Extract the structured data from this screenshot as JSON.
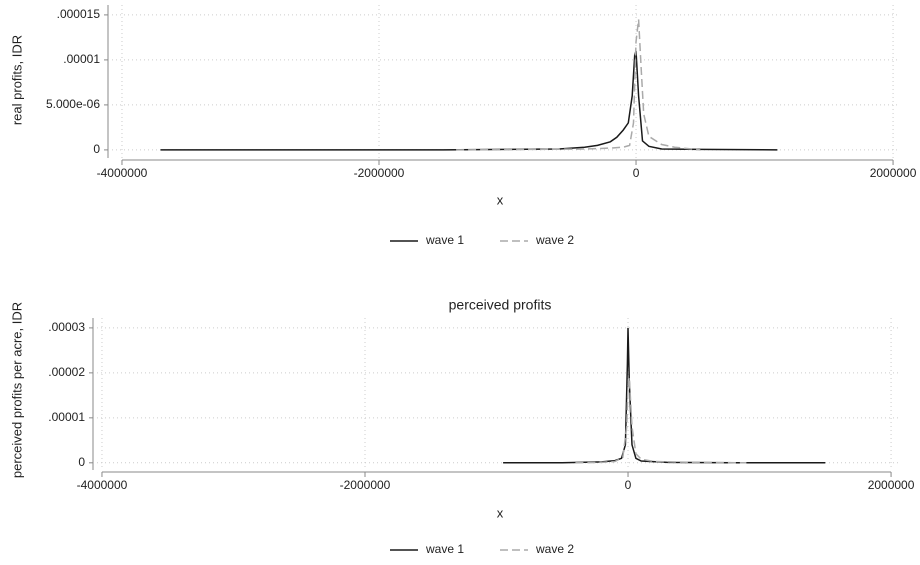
{
  "chart_data": [
    {
      "type": "line",
      "ylabel": "real profits, IDR",
      "xlabel": "x",
      "xlim": [
        -4171000,
        2054000
      ],
      "ylim": [
        -9e-07,
        1.61e-05
      ],
      "xticks": [
        -4000000,
        -2000000,
        0,
        2000000
      ],
      "yticks": [
        0,
        {
          "value": 5e-06,
          "label": "5.000e-06"
        },
        {
          "value": 1e-05,
          "label": ".00001"
        },
        {
          "value": 1.5e-05,
          "label": ".000015"
        }
      ],
      "grid": true,
      "legend": "bottom",
      "series": [
        {
          "name": "wave 1",
          "color": "#1a1a1a",
          "dash": false,
          "x": [
            -3700000,
            -3000000,
            -2000000,
            -1500000,
            -1000000,
            -600000,
            -400000,
            -300000,
            -200000,
            -150000,
            -100000,
            -60000,
            -30000,
            -10000,
            0,
            20000,
            50000,
            100000,
            200000,
            500000,
            1100000
          ],
          "values": [
            0,
            0,
            0,
            0,
            5e-08,
            1e-07,
            3e-07,
            5e-07,
            9e-07,
            1.4e-06,
            2.2e-06,
            3e-06,
            6e-06,
            1.05e-05,
            1.1e-05,
            6e-06,
            1e-06,
            4e-07,
            1e-07,
            5e-08,
            0
          ]
        },
        {
          "name": "wave 2",
          "color": "#aaaaaa",
          "dash": true,
          "x": [
            -1400000,
            -800000,
            -400000,
            -200000,
            -100000,
            -50000,
            -20000,
            0,
            20000,
            40000,
            60000,
            100000,
            200000,
            300000,
            500000
          ],
          "values": [
            0,
            5e-08,
            1e-07,
            2e-07,
            3e-07,
            5e-07,
            3e-06,
            1.2e-05,
            1.45e-05,
            9e-06,
            4e-06,
            1.5e-06,
            6e-07,
            3e-07,
            0
          ]
        }
      ]
    },
    {
      "type": "line",
      "title": "perceived profits",
      "ylabel": "perceived profits per acre, IDR",
      "xlabel": "x",
      "xlim": [
        -4129000,
        2068000
      ],
      "ylim": [
        -1.6e-06,
        3.22e-05
      ],
      "xticks": [
        -4000000,
        -2000000,
        0,
        2000000
      ],
      "yticks": [
        0,
        {
          "value": 1e-05,
          "label": ".00001"
        },
        {
          "value": 2e-05,
          "label": ".00002"
        },
        {
          "value": 3e-05,
          "label": ".00003"
        }
      ],
      "grid": true,
      "legend": "bottom",
      "series": [
        {
          "name": "wave 1",
          "color": "#1a1a1a",
          "dash": false,
          "x": [
            -950000,
            -500000,
            -200000,
            -100000,
            -50000,
            -20000,
            -5000,
            0,
            10000,
            30000,
            60000,
            100000,
            300000,
            800000,
            1500000
          ],
          "values": [
            0,
            0,
            2e-07,
            5e-07,
            1e-06,
            4e-06,
            2.2e-05,
            3e-05,
            1.8e-05,
            4e-06,
            1e-06,
            4e-07,
            1e-07,
            0,
            0
          ]
        },
        {
          "name": "wave 2",
          "color": "#aaaaaa",
          "dash": true,
          "x": [
            -400000,
            -200000,
            -100000,
            -40000,
            -10000,
            0,
            10000,
            30000,
            60000,
            100000,
            200000,
            500000,
            900000
          ],
          "values": [
            0,
            1e-07,
            3e-07,
            1.2e-06,
            8e-06,
            1.7e-05,
            1.9e-05,
            8e-06,
            2e-06,
            8e-07,
            3e-07,
            1e-07,
            0
          ]
        }
      ]
    }
  ]
}
